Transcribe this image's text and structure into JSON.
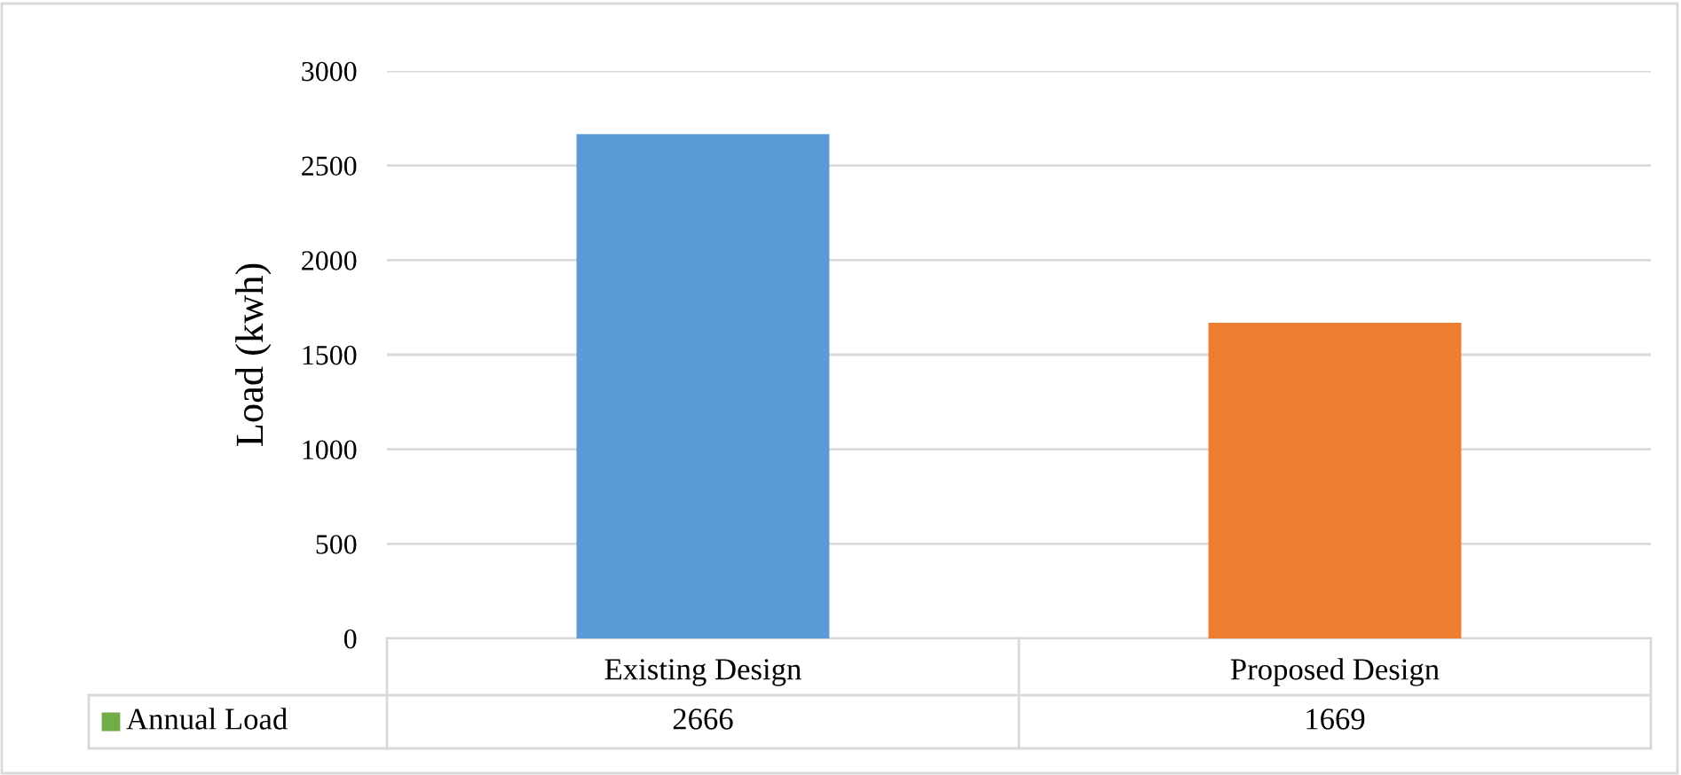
{
  "chart_data": {
    "type": "bar",
    "ylabel": "Load (kwh)",
    "categories": [
      "Existing Design",
      "Proposed Design"
    ],
    "series": [
      {
        "name": "Annual Load",
        "color": "#70ad47",
        "colors": [
          "#5b9bd5",
          "#ed7d31"
        ],
        "values": [
          2666,
          1669
        ]
      }
    ],
    "ylim": [
      0,
      3000
    ],
    "yticks": [
      0,
      500,
      1000,
      1500,
      2000,
      2500,
      3000
    ],
    "grid": "y",
    "legend": "bottom left",
    "data_labels": true
  }
}
